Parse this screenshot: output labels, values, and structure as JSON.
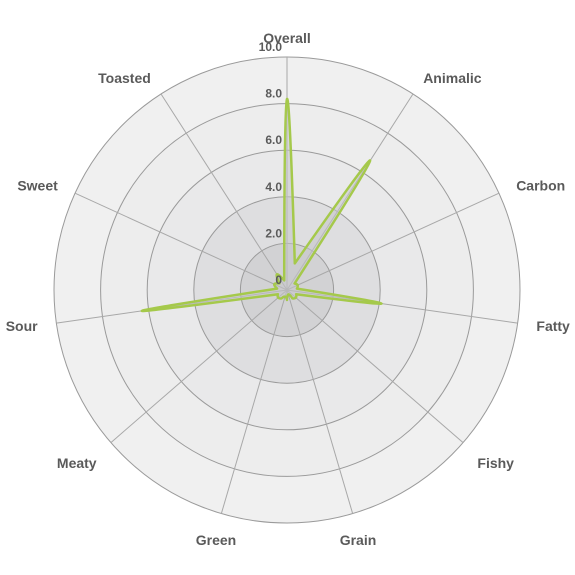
{
  "chart_data": {
    "type": "radar",
    "axes": [
      "Overall",
      "Animalic",
      "Carbon",
      "Fatty",
      "Fishy",
      "Grain",
      "Green",
      "Meaty",
      "Sour",
      "Sweet",
      "Toasted"
    ],
    "values": [
      8.2,
      6.6,
      0.5,
      4.1,
      0.5,
      0.2,
      0.3,
      0.5,
      6.3,
      0.6,
      0.8
    ],
    "rlim": [
      0,
      10
    ],
    "ticks": [
      0,
      2,
      4,
      6,
      8,
      10
    ],
    "tick_labels": [
      "0",
      "2.0",
      "4.0",
      "6.0",
      "8.0",
      "10.0"
    ],
    "ring_fill_colors": [
      "#d2d2d4",
      "#dedee0",
      "#e9e9ea",
      "#ededed",
      "#f0f0f0"
    ],
    "line_color": "#a5c94b",
    "fill_color": "#c4c4c8"
  }
}
